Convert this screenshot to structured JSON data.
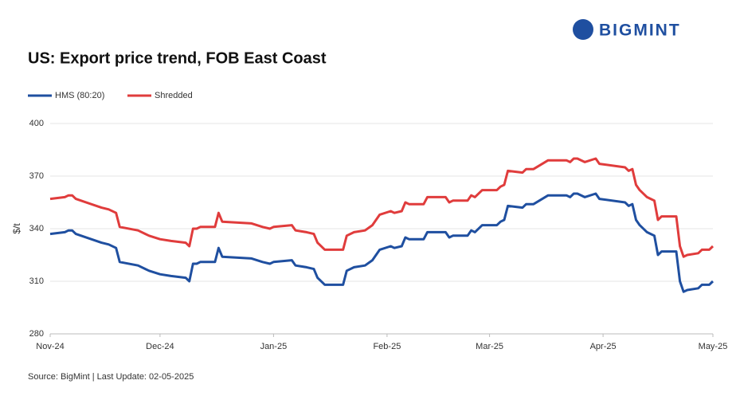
{
  "brand": "BIGMINT",
  "chart_data": {
    "type": "line",
    "title": "US: Export price trend, FOB East Coast",
    "y_label": "$/t",
    "source": "Source: BigMint | Last Update: 02-05-2025",
    "x": [
      0,
      4,
      5,
      6,
      7,
      14,
      16,
      18,
      19,
      24,
      26,
      27,
      30,
      33,
      37,
      38,
      39,
      40,
      41,
      45,
      46,
      47,
      55,
      58,
      60,
      61,
      66,
      67,
      70,
      72,
      73,
      75,
      80,
      81,
      83,
      86,
      88,
      90,
      93,
      94,
      96,
      97,
      98,
      102,
      103,
      108,
      109,
      110,
      114,
      115,
      116,
      118,
      122,
      123,
      124,
      125,
      129,
      130,
      132,
      136,
      141,
      142,
      143,
      144,
      146,
      149,
      150,
      157,
      158,
      159,
      160,
      161,
      163,
      164,
      165,
      166,
      167,
      171,
      172,
      173,
      174,
      177,
      178,
      180,
      181
    ],
    "series": [
      {
        "name": "HMS (80:20)",
        "color": "#1f4fa0",
        "values": [
          337,
          338,
          339,
          339,
          337,
          332,
          331,
          329,
          321,
          319,
          317,
          316,
          314,
          313,
          312,
          310,
          320,
          320,
          321,
          321,
          329,
          324,
          323,
          321,
          320,
          321,
          322,
          319,
          318,
          317,
          312,
          308,
          308,
          316,
          318,
          319,
          322,
          328,
          330,
          329,
          330,
          335,
          334,
          334,
          338,
          338,
          335,
          336,
          336,
          339,
          338,
          342,
          342,
          344,
          345,
          353,
          352,
          354,
          354,
          359,
          359,
          358,
          360,
          360,
          358,
          360,
          357,
          355,
          353,
          354,
          345,
          342,
          338,
          337,
          336,
          325,
          327,
          327,
          310,
          304,
          305,
          306,
          308,
          308,
          310
        ]
      },
      {
        "name": "Shredded",
        "color": "#e03c3c",
        "values": [
          357,
          358,
          359,
          359,
          357,
          352,
          351,
          349,
          341,
          339,
          337,
          336,
          334,
          333,
          332,
          330,
          340,
          340,
          341,
          341,
          349,
          344,
          343,
          341,
          340,
          341,
          342,
          339,
          338,
          337,
          332,
          328,
          328,
          336,
          338,
          339,
          342,
          348,
          350,
          349,
          350,
          355,
          354,
          354,
          358,
          358,
          355,
          356,
          356,
          359,
          358,
          362,
          362,
          364,
          365,
          373,
          372,
          374,
          374,
          379,
          379,
          378,
          380,
          380,
          378,
          380,
          377,
          375,
          373,
          374,
          365,
          362,
          358,
          357,
          356,
          345,
          347,
          347,
          330,
          324,
          325,
          326,
          328,
          328,
          330
        ]
      }
    ],
    "xlim": [
      0,
      181
    ],
    "xticks": [
      {
        "value": 0,
        "label": "Nov-24"
      },
      {
        "value": 30,
        "label": "Dec-24"
      },
      {
        "value": 61,
        "label": "Jan-25"
      },
      {
        "value": 92,
        "label": "Feb-25"
      },
      {
        "value": 120,
        "label": "Mar-25"
      },
      {
        "value": 151,
        "label": "Apr-25"
      },
      {
        "value": 181,
        "label": "May-25"
      }
    ],
    "ylim": [
      280,
      400
    ],
    "yticks": [
      280,
      310,
      340,
      370,
      400
    ],
    "grid": true
  }
}
